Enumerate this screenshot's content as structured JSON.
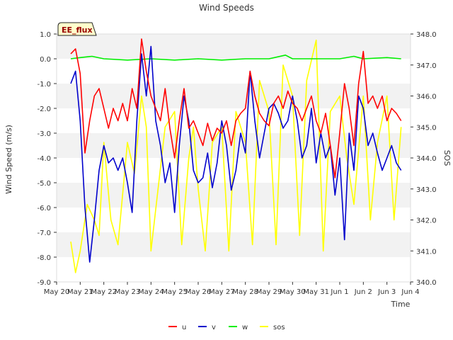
{
  "chart_data": {
    "type": "line",
    "title": "Wind Speeds",
    "xlabel": "Time",
    "ylabel": "Wind Speed (m/s)",
    "y2label": "SOS",
    "badge": "EE_flux",
    "ylim": [
      -9.0,
      1.0
    ],
    "y2lim": [
      340.0,
      348.0
    ],
    "yticks": [
      "1.0",
      "0.0",
      "-1.0",
      "-2.0",
      "-3.0",
      "-4.0",
      "-5.0",
      "-6.0",
      "-7.0",
      "-8.0",
      "-9.0"
    ],
    "y2ticks": [
      "348.0",
      "347.0",
      "346.0",
      "345.0",
      "344.0",
      "343.0",
      "342.0",
      "341.0",
      "340.0"
    ],
    "xticks": [
      "May 20",
      "May 21",
      "May 22",
      "May 23",
      "May 24",
      "May 25",
      "May 26",
      "May 27",
      "May 28",
      "May 29",
      "May 30",
      "May 31",
      "Jun 1",
      "Jun 2",
      "Jun 3",
      "Jun 4"
    ],
    "xlim_days": [
      0,
      15
    ],
    "series": [
      {
        "name": "u",
        "axis": "left",
        "color": "#ff0000",
        "x": [
          0.6,
          0.8,
          1.0,
          1.2,
          1.4,
          1.6,
          1.8,
          2.0,
          2.2,
          2.4,
          2.6,
          2.8,
          3.0,
          3.2,
          3.4,
          3.6,
          3.8,
          4.0,
          4.2,
          4.4,
          4.6,
          4.8,
          5.0,
          5.2,
          5.4,
          5.6,
          5.8,
          6.0,
          6.2,
          6.4,
          6.6,
          6.8,
          7.0,
          7.2,
          7.4,
          7.6,
          7.8,
          8.0,
          8.2,
          8.4,
          8.6,
          8.8,
          9.0,
          9.2,
          9.4,
          9.6,
          9.8,
          10.0,
          10.2,
          10.4,
          10.6,
          10.8,
          11.0,
          11.2,
          11.4,
          11.6,
          11.8,
          12.0,
          12.2,
          12.4,
          12.6,
          12.8,
          13.0,
          13.2,
          13.4,
          13.6,
          13.8,
          14.0,
          14.2,
          14.4,
          14.6
        ],
        "values": [
          0.2,
          0.4,
          -0.6,
          -3.8,
          -2.5,
          -1.5,
          -1.2,
          -2.0,
          -2.8,
          -2.0,
          -2.5,
          -1.8,
          -2.5,
          -1.2,
          -2.0,
          0.8,
          -0.5,
          -1.5,
          -2.0,
          -2.5,
          -1.2,
          -2.8,
          -4.0,
          -2.5,
          -1.2,
          -2.8,
          -2.5,
          -3.0,
          -3.5,
          -2.6,
          -3.3,
          -2.8,
          -3.0,
          -2.5,
          -3.5,
          -2.5,
          -2.2,
          -2.0,
          -0.5,
          -1.5,
          -2.2,
          -2.5,
          -2.7,
          -1.8,
          -1.5,
          -2.0,
          -1.3,
          -1.8,
          -2.0,
          -2.5,
          -2.0,
          -1.5,
          -2.5,
          -3.0,
          -2.2,
          -3.5,
          -4.8,
          -3.0,
          -1.0,
          -2.0,
          -3.5,
          -1.0,
          0.3,
          -1.8,
          -1.5,
          -2.0,
          -1.5,
          -2.5,
          -2.0,
          -2.2,
          -2.5
        ]
      },
      {
        "name": "v",
        "axis": "left",
        "color": "#0000cc",
        "x": [
          0.6,
          0.8,
          1.0,
          1.2,
          1.4,
          1.6,
          1.8,
          2.0,
          2.2,
          2.4,
          2.6,
          2.8,
          3.0,
          3.2,
          3.4,
          3.6,
          3.8,
          4.0,
          4.2,
          4.4,
          4.6,
          4.8,
          5.0,
          5.2,
          5.4,
          5.6,
          5.8,
          6.0,
          6.2,
          6.4,
          6.6,
          6.8,
          7.0,
          7.2,
          7.4,
          7.6,
          7.8,
          8.0,
          8.2,
          8.4,
          8.6,
          8.8,
          9.0,
          9.2,
          9.4,
          9.6,
          9.8,
          10.0,
          10.2,
          10.4,
          10.6,
          10.8,
          11.0,
          11.2,
          11.4,
          11.6,
          11.8,
          12.0,
          12.2,
          12.4,
          12.6,
          12.8,
          13.0,
          13.2,
          13.4,
          13.6,
          13.8,
          14.0,
          14.2,
          14.4,
          14.6
        ],
        "values": [
          -1.0,
          -0.5,
          -2.5,
          -6.0,
          -8.2,
          -6.5,
          -4.5,
          -3.5,
          -4.2,
          -4.0,
          -4.5,
          -4.0,
          -5.0,
          -6.2,
          -2.5,
          0.2,
          -1.5,
          0.5,
          -2.5,
          -3.5,
          -5.0,
          -4.2,
          -6.2,
          -3.5,
          -1.5,
          -2.5,
          -4.5,
          -5.0,
          -4.8,
          -3.8,
          -5.2,
          -4.2,
          -2.5,
          -3.5,
          -5.3,
          -4.5,
          -3.0,
          -3.8,
          -0.5,
          -2.5,
          -4.0,
          -3.0,
          -2.0,
          -1.8,
          -2.2,
          -2.8,
          -2.5,
          -1.5,
          -2.5,
          -4.0,
          -3.5,
          -2.0,
          -4.2,
          -3.0,
          -4.0,
          -3.5,
          -5.5,
          -4.0,
          -7.3,
          -3.0,
          -4.5,
          -1.5,
          -2.0,
          -3.5,
          -3.0,
          -3.8,
          -4.5,
          -4.0,
          -3.5,
          -4.2,
          -4.5
        ]
      },
      {
        "name": "w",
        "axis": "left",
        "color": "#00ee00",
        "x": [
          0.6,
          1.0,
          1.5,
          2.0,
          3.0,
          4.0,
          5.0,
          6.0,
          7.0,
          8.0,
          9.0,
          9.7,
          10.0,
          11.0,
          12.0,
          12.6,
          13.0,
          14.0,
          14.6
        ],
        "values": [
          0.0,
          0.05,
          0.1,
          0.0,
          -0.05,
          0.0,
          -0.05,
          0.0,
          -0.05,
          0.0,
          0.0,
          0.15,
          0.0,
          0.0,
          0.0,
          0.1,
          0.0,
          0.05,
          0.0
        ]
      },
      {
        "name": "sos",
        "axis": "right",
        "color": "#ffff00",
        "x": [
          0.6,
          0.8,
          1.0,
          1.3,
          1.6,
          1.8,
          2.0,
          2.3,
          2.6,
          3.0,
          3.3,
          3.6,
          3.8,
          4.0,
          4.3,
          4.6,
          5.0,
          5.3,
          5.6,
          5.8,
          6.0,
          6.3,
          6.6,
          7.0,
          7.3,
          7.6,
          8.0,
          8.3,
          8.6,
          9.0,
          9.3,
          9.6,
          10.0,
          10.3,
          10.6,
          11.0,
          11.3,
          11.6,
          12.0,
          12.3,
          12.6,
          13.0,
          13.3,
          13.6,
          14.0,
          14.3,
          14.6
        ],
        "values": [
          341.3,
          340.3,
          341.0,
          342.5,
          342.0,
          341.5,
          344.5,
          342.0,
          341.2,
          344.5,
          343.5,
          346.0,
          345.0,
          341.0,
          343.0,
          345.0,
          345.5,
          341.2,
          344.0,
          345.0,
          343.0,
          341.0,
          344.5,
          345.0,
          341.0,
          345.5,
          344.5,
          341.2,
          346.5,
          345.5,
          341.2,
          347.0,
          346.0,
          341.5,
          346.5,
          347.8,
          341.0,
          345.5,
          346.0,
          344.0,
          342.5,
          346.0,
          342.0,
          344.5,
          346.0,
          342.0,
          345.0
        ]
      }
    ]
  }
}
